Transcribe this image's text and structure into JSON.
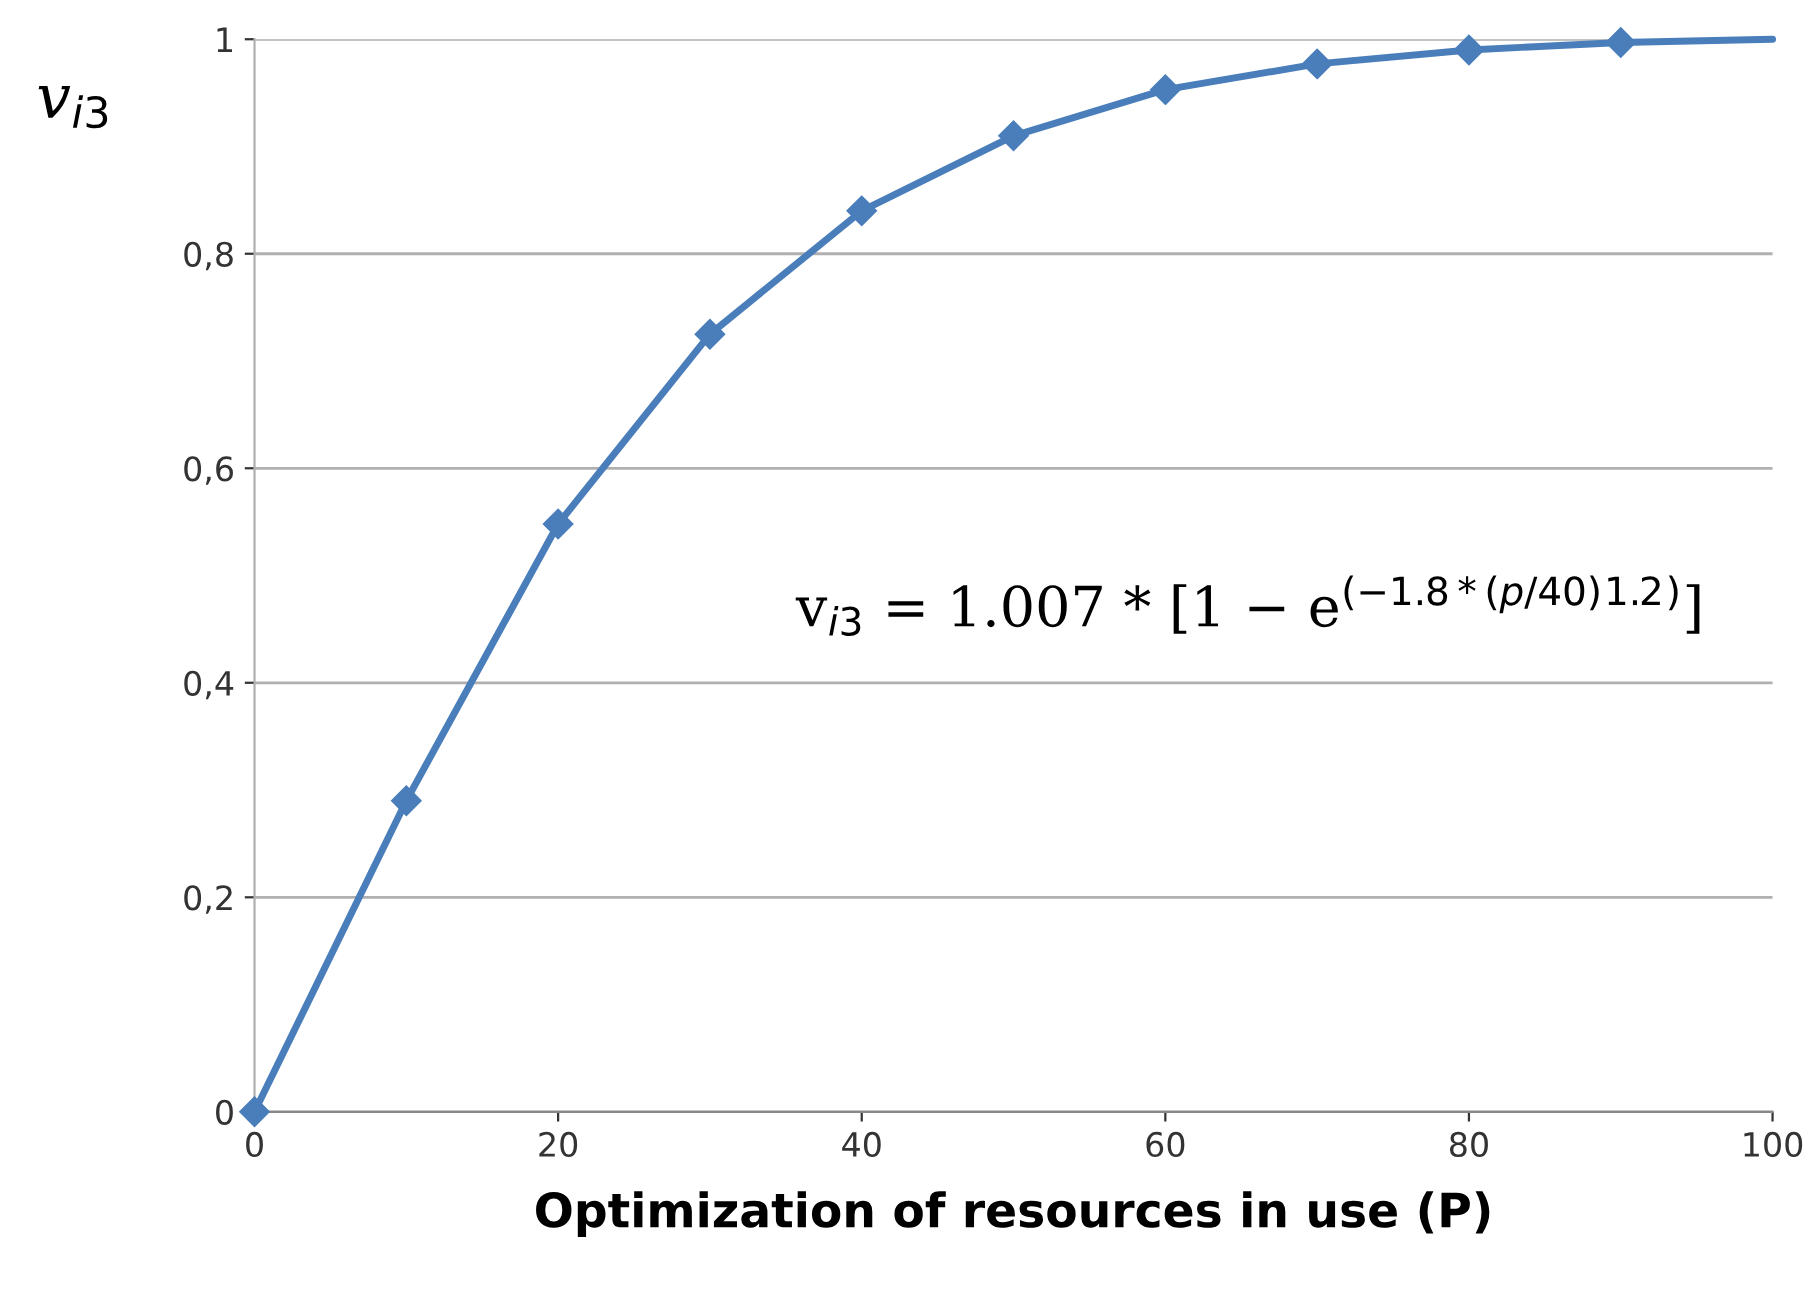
{
  "chart_data": {
    "type": "line",
    "xlabel": "Optimization of resources in use (P)",
    "ylabel": "v$_{i3}$",
    "series": [
      {
        "color": "#4a7ebb",
        "x": [
          0,
          10,
          20,
          30,
          40,
          50,
          60,
          70,
          80,
          90
        ],
        "values": [
          0,
          0.29,
          0.548,
          0.725,
          0.84,
          0.91,
          0.953,
          0.977,
          0.99,
          0.997
        ],
        "marker": "diamond"
      },
      {
        "color": "#4a7ebb",
        "x": [
          90,
          100
        ],
        "values": [
          0.997,
          1.0
        ],
        "marker": "none"
      }
    ],
    "xlim": [
      0,
      100
    ],
    "ylim": [
      0,
      1
    ],
    "xticks": [
      0,
      20,
      40,
      60,
      80,
      100
    ],
    "yticks": [
      0,
      {
        "value": 0.2,
        "label": "0,2"
      },
      {
        "value": 0.4,
        "label": "0,4"
      },
      {
        "value": 0.6,
        "label": "0,6"
      },
      {
        "value": 0.8,
        "label": "0,8"
      },
      1
    ],
    "grid": "y",
    "line_style": "solid",
    "annotations": [
      "v$_{i3}$ = 1.007 * [1 − e$^{(−1.8*(p/40)}$$^{1.2}$$^{)}$]"
    ]
  }
}
